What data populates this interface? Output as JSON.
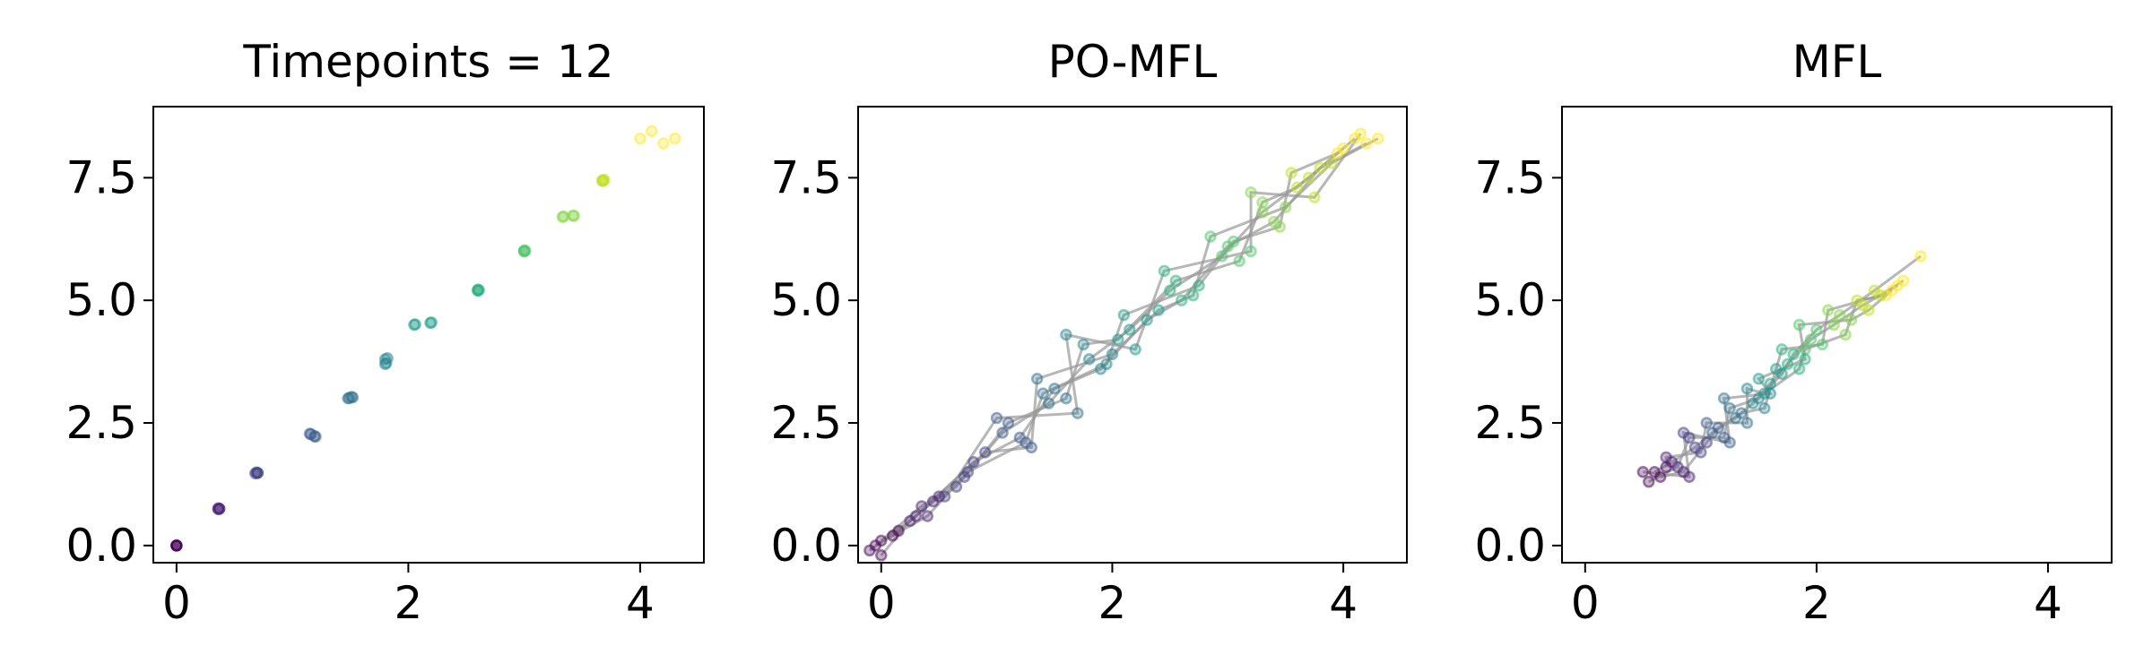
{
  "chart_data": [
    {
      "type": "scatter",
      "title": "Timepoints = 12",
      "show_paths": false,
      "path_color": "#999999",
      "timepoint_colors": [
        "#440154",
        "#482173",
        "#433e85",
        "#38598c",
        "#2d708e",
        "#25858e",
        "#1e9b8a",
        "#2ab07f",
        "#52c569",
        "#86d549",
        "#c2df23",
        "#fde725"
      ],
      "xlim": [
        -0.2,
        4.55
      ],
      "ylim": [
        -0.35,
        8.95
      ],
      "xticks": [
        0,
        2,
        4
      ],
      "yticks": [
        {
          "value": 0,
          "label": "0.0"
        },
        2.5,
        {
          "value": 5,
          "label": "5.0"
        },
        7.5
      ],
      "paths": [
        {
          "x": [
            0,
            0.37,
            0.7,
            1.15,
            1.48,
            1.8,
            2.05,
            2.6,
            3.0,
            3.33,
            3.68,
            4.0
          ],
          "y": [
            0,
            0.75,
            1.48,
            2.28,
            3.0,
            3.7,
            4.5,
            5.2,
            6.0,
            6.7,
            7.45,
            8.3
          ]
        },
        {
          "x": [
            0,
            0.36,
            0.68,
            1.2,
            1.52,
            1.82,
            2.2,
            2.6,
            3.0,
            3.43,
            3.68,
            4.1
          ],
          "y": [
            0,
            0.74,
            1.47,
            2.22,
            3.02,
            3.82,
            4.55,
            5.22,
            6.02,
            6.72,
            7.43,
            8.45
          ]
        },
        {
          "x": [
            0,
            0.37,
            0.69,
            1.16,
            1.49,
            1.81,
            2.06,
            2.61,
            3.01,
            3.34,
            3.69,
            4.2
          ],
          "y": [
            0,
            0.75,
            1.49,
            2.27,
            3.01,
            3.72,
            4.51,
            5.21,
            6.01,
            6.71,
            7.46,
            8.2
          ]
        },
        {
          "x": [
            0,
            0.36,
            0.7,
            1.19,
            1.51,
            1.8,
            2.19,
            2.6,
            3.0,
            3.42,
            3.67,
            4.3
          ],
          "y": [
            0,
            0.76,
            1.48,
            2.23,
            3.03,
            3.8,
            4.54,
            5.2,
            6.0,
            6.73,
            7.44,
            8.3
          ]
        }
      ]
    },
    {
      "type": "scatter",
      "title": "PO-MFL",
      "show_paths": true,
      "path_color": "#999999",
      "timepoint_colors": [
        "#440154",
        "#482173",
        "#433e85",
        "#38598c",
        "#2d708e",
        "#25858e",
        "#1e9b8a",
        "#2ab07f",
        "#52c569",
        "#86d549",
        "#c2df23",
        "#fde725"
      ],
      "xlim": [
        -0.2,
        4.55
      ],
      "ylim": [
        -0.35,
        8.95
      ],
      "xticks": [
        0,
        2,
        4
      ],
      "yticks": [
        {
          "value": 0,
          "label": "0.0"
        },
        2.5,
        {
          "value": 5,
          "label": "5.0"
        },
        7.5
      ],
      "paths": [
        {
          "x": [
            0,
            0.35,
            0.72,
            1.05,
            1.45,
            1.8,
            2.15,
            2.5,
            2.95,
            3.3,
            3.7,
            4.1
          ],
          "y": [
            0.1,
            0.8,
            1.4,
            2.3,
            2.9,
            3.8,
            4.4,
            5.2,
            5.9,
            6.8,
            7.5,
            8.3
          ]
        },
        {
          "x": [
            -0.1,
            0.3,
            0.8,
            1.2,
            1.5,
            1.9,
            2.3,
            2.6,
            3.0,
            3.4,
            3.8,
            4.2
          ],
          "y": [
            -0.1,
            0.6,
            1.7,
            2.2,
            3.2,
            3.6,
            4.6,
            5.0,
            6.1,
            6.6,
            7.7,
            8.2
          ]
        },
        {
          "x": [
            0.1,
            0.45,
            0.65,
            1.1,
            1.6,
            1.75,
            2.05,
            2.55,
            3.1,
            3.3,
            3.6,
            4.0
          ],
          "y": [
            0.2,
            0.9,
            1.2,
            2.5,
            3.0,
            4.1,
            4.2,
            5.4,
            5.8,
            7.0,
            7.3,
            8.1
          ]
        },
        {
          "x": [
            0,
            0.25,
            0.9,
            1.3,
            1.35,
            2.0,
            2.4,
            2.7,
            2.85,
            3.5,
            3.9,
            4.3
          ],
          "y": [
            -0.2,
            0.5,
            1.9,
            2.0,
            3.4,
            3.9,
            4.8,
            5.1,
            6.3,
            6.9,
            7.8,
            8.3
          ]
        },
        {
          "x": [
            0.15,
            0.5,
            0.55,
            1.0,
            1.7,
            1.6,
            2.2,
            2.45,
            3.2,
            3.2,
            3.75,
            4.15
          ],
          "y": [
            0.3,
            1.0,
            1.0,
            2.6,
            2.7,
            4.3,
            4.0,
            5.6,
            6.0,
            7.2,
            7.1,
            8.4
          ]
        },
        {
          "x": [
            -0.05,
            0.4,
            0.75,
            1.25,
            1.4,
            1.95,
            2.1,
            2.75,
            3.05,
            3.45,
            3.55,
            3.95
          ],
          "y": [
            0,
            0.6,
            1.5,
            2.1,
            3.1,
            3.7,
            4.7,
            5.3,
            6.2,
            6.5,
            7.6,
            8.0
          ]
        }
      ]
    },
    {
      "type": "scatter",
      "title": "MFL",
      "show_paths": true,
      "path_color": "#999999",
      "timepoint_colors": [
        "#440154",
        "#482173",
        "#433e85",
        "#38598c",
        "#2d708e",
        "#25858e",
        "#1e9b8a",
        "#2ab07f",
        "#52c569",
        "#86d549",
        "#c2df23",
        "#fde725"
      ],
      "xlim": [
        -0.2,
        4.55
      ],
      "ylim": [
        -0.35,
        8.95
      ],
      "xticks": [
        0,
        2,
        4
      ],
      "yticks": [
        {
          "value": 0,
          "label": "0.0"
        },
        2.5,
        {
          "value": 5,
          "label": "5.0"
        },
        7.5
      ],
      "paths": [
        {
          "x": [
            0.6,
            0.75,
            0.95,
            1.1,
            1.3,
            1.45,
            1.6,
            1.75,
            1.95,
            2.15,
            2.4,
            2.7
          ],
          "y": [
            1.5,
            1.7,
            2.0,
            2.3,
            2.6,
            2.9,
            3.3,
            3.7,
            4.2,
            4.5,
            4.9,
            5.3
          ]
        },
        {
          "x": [
            0.55,
            0.8,
            0.9,
            1.2,
            1.25,
            1.5,
            1.7,
            1.8,
            2.0,
            2.2,
            2.5,
            2.9
          ],
          "y": [
            1.3,
            1.6,
            2.2,
            2.2,
            2.8,
            3.0,
            3.5,
            3.9,
            4.4,
            4.7,
            5.2,
            5.9
          ]
        },
        {
          "x": [
            0.7,
            0.7,
            1.0,
            1.05,
            1.4,
            1.4,
            1.55,
            1.85,
            1.9,
            2.25,
            2.35,
            2.6
          ],
          "y": [
            1.6,
            1.8,
            1.9,
            2.5,
            2.5,
            3.2,
            3.1,
            3.6,
            4.0,
            4.3,
            5.0,
            5.1
          ]
        },
        {
          "x": [
            0.65,
            0.85,
            1.05,
            1.15,
            1.35,
            1.55,
            1.65,
            1.7,
            2.05,
            2.1,
            2.55,
            2.75
          ],
          "y": [
            1.4,
            1.5,
            2.1,
            2.4,
            2.7,
            2.8,
            3.6,
            4.0,
            4.1,
            4.8,
            5.1,
            5.4
          ]
        },
        {
          "x": [
            0.5,
            0.9,
            0.85,
            1.25,
            1.2,
            1.6,
            1.5,
            1.9,
            1.85,
            2.3,
            2.45,
            2.65
          ],
          "y": [
            1.5,
            1.4,
            2.3,
            2.1,
            3.0,
            3.1,
            3.4,
            3.8,
            4.5,
            4.6,
            4.8,
            5.2
          ]
        }
      ]
    }
  ]
}
